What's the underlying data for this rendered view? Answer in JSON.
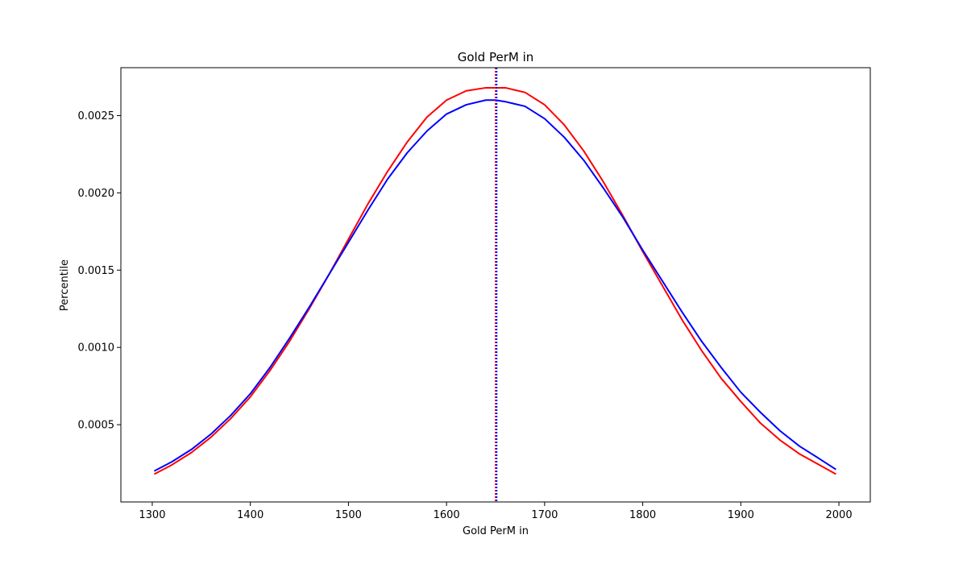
{
  "chart_data": {
    "type": "line",
    "title": "Gold PerM in",
    "xlabel": "Gold PerM in",
    "ylabel": "Percentile",
    "xlim": [
      1268,
      2032
    ],
    "ylim": [
      0.0,
      0.00281
    ],
    "xticks": [
      1300,
      1400,
      1500,
      1600,
      1700,
      1800,
      1900,
      2000
    ],
    "xtick_labels": [
      "1300",
      "1400",
      "1500",
      "1600",
      "1700",
      "1800",
      "1900",
      "2000"
    ],
    "yticks": [
      0.0005,
      0.001,
      0.0015,
      0.002,
      0.0025
    ],
    "ytick_labels": [
      "0.0005",
      "0.0010",
      "0.0015",
      "0.0020",
      "0.0025"
    ],
    "grid": false,
    "legend": "none",
    "series": [
      {
        "color": "#ff0000",
        "x": [
          1302,
          1320,
          1340,
          1360,
          1380,
          1400,
          1420,
          1440,
          1460,
          1480,
          1500,
          1520,
          1540,
          1560,
          1580,
          1600,
          1620,
          1640,
          1650,
          1660,
          1680,
          1700,
          1720,
          1740,
          1760,
          1780,
          1800,
          1820,
          1840,
          1860,
          1880,
          1900,
          1920,
          1940,
          1960,
          1980,
          1997
        ],
        "y": [
          0.00018,
          0.00024,
          0.00032,
          0.00042,
          0.00054,
          0.00068,
          0.00085,
          0.00104,
          0.00125,
          0.00147,
          0.0017,
          0.00193,
          0.00214,
          0.00233,
          0.00249,
          0.0026,
          0.00266,
          0.00268,
          0.00268,
          0.00268,
          0.00265,
          0.00257,
          0.00244,
          0.00227,
          0.00207,
          0.00185,
          0.00162,
          0.0014,
          0.00118,
          0.00098,
          0.0008,
          0.00065,
          0.00051,
          0.0004,
          0.00031,
          0.00024,
          0.00018
        ]
      },
      {
        "color": "#0000ff",
        "x": [
          1302,
          1320,
          1340,
          1360,
          1380,
          1400,
          1420,
          1440,
          1460,
          1480,
          1500,
          1520,
          1540,
          1560,
          1580,
          1600,
          1620,
          1640,
          1650,
          1660,
          1680,
          1700,
          1720,
          1740,
          1760,
          1780,
          1800,
          1820,
          1840,
          1860,
          1880,
          1900,
          1920,
          1940,
          1960,
          1980,
          1997
        ],
        "y": [
          0.0002,
          0.00026,
          0.00034,
          0.00044,
          0.00056,
          0.0007,
          0.00087,
          0.00106,
          0.00126,
          0.00147,
          0.00168,
          0.00189,
          0.00209,
          0.00226,
          0.0024,
          0.00251,
          0.00257,
          0.0026,
          0.0026,
          0.00259,
          0.00256,
          0.00248,
          0.00236,
          0.00221,
          0.00203,
          0.00184,
          0.00163,
          0.00143,
          0.00123,
          0.00104,
          0.00087,
          0.00071,
          0.00058,
          0.00046,
          0.00036,
          0.00028,
          0.00021
        ]
      }
    ],
    "vlines": [
      {
        "x": 1650,
        "color": "#ff0000",
        "style": "dotted"
      },
      {
        "x": 1651,
        "color": "#0000ff",
        "style": "dotted"
      }
    ]
  }
}
